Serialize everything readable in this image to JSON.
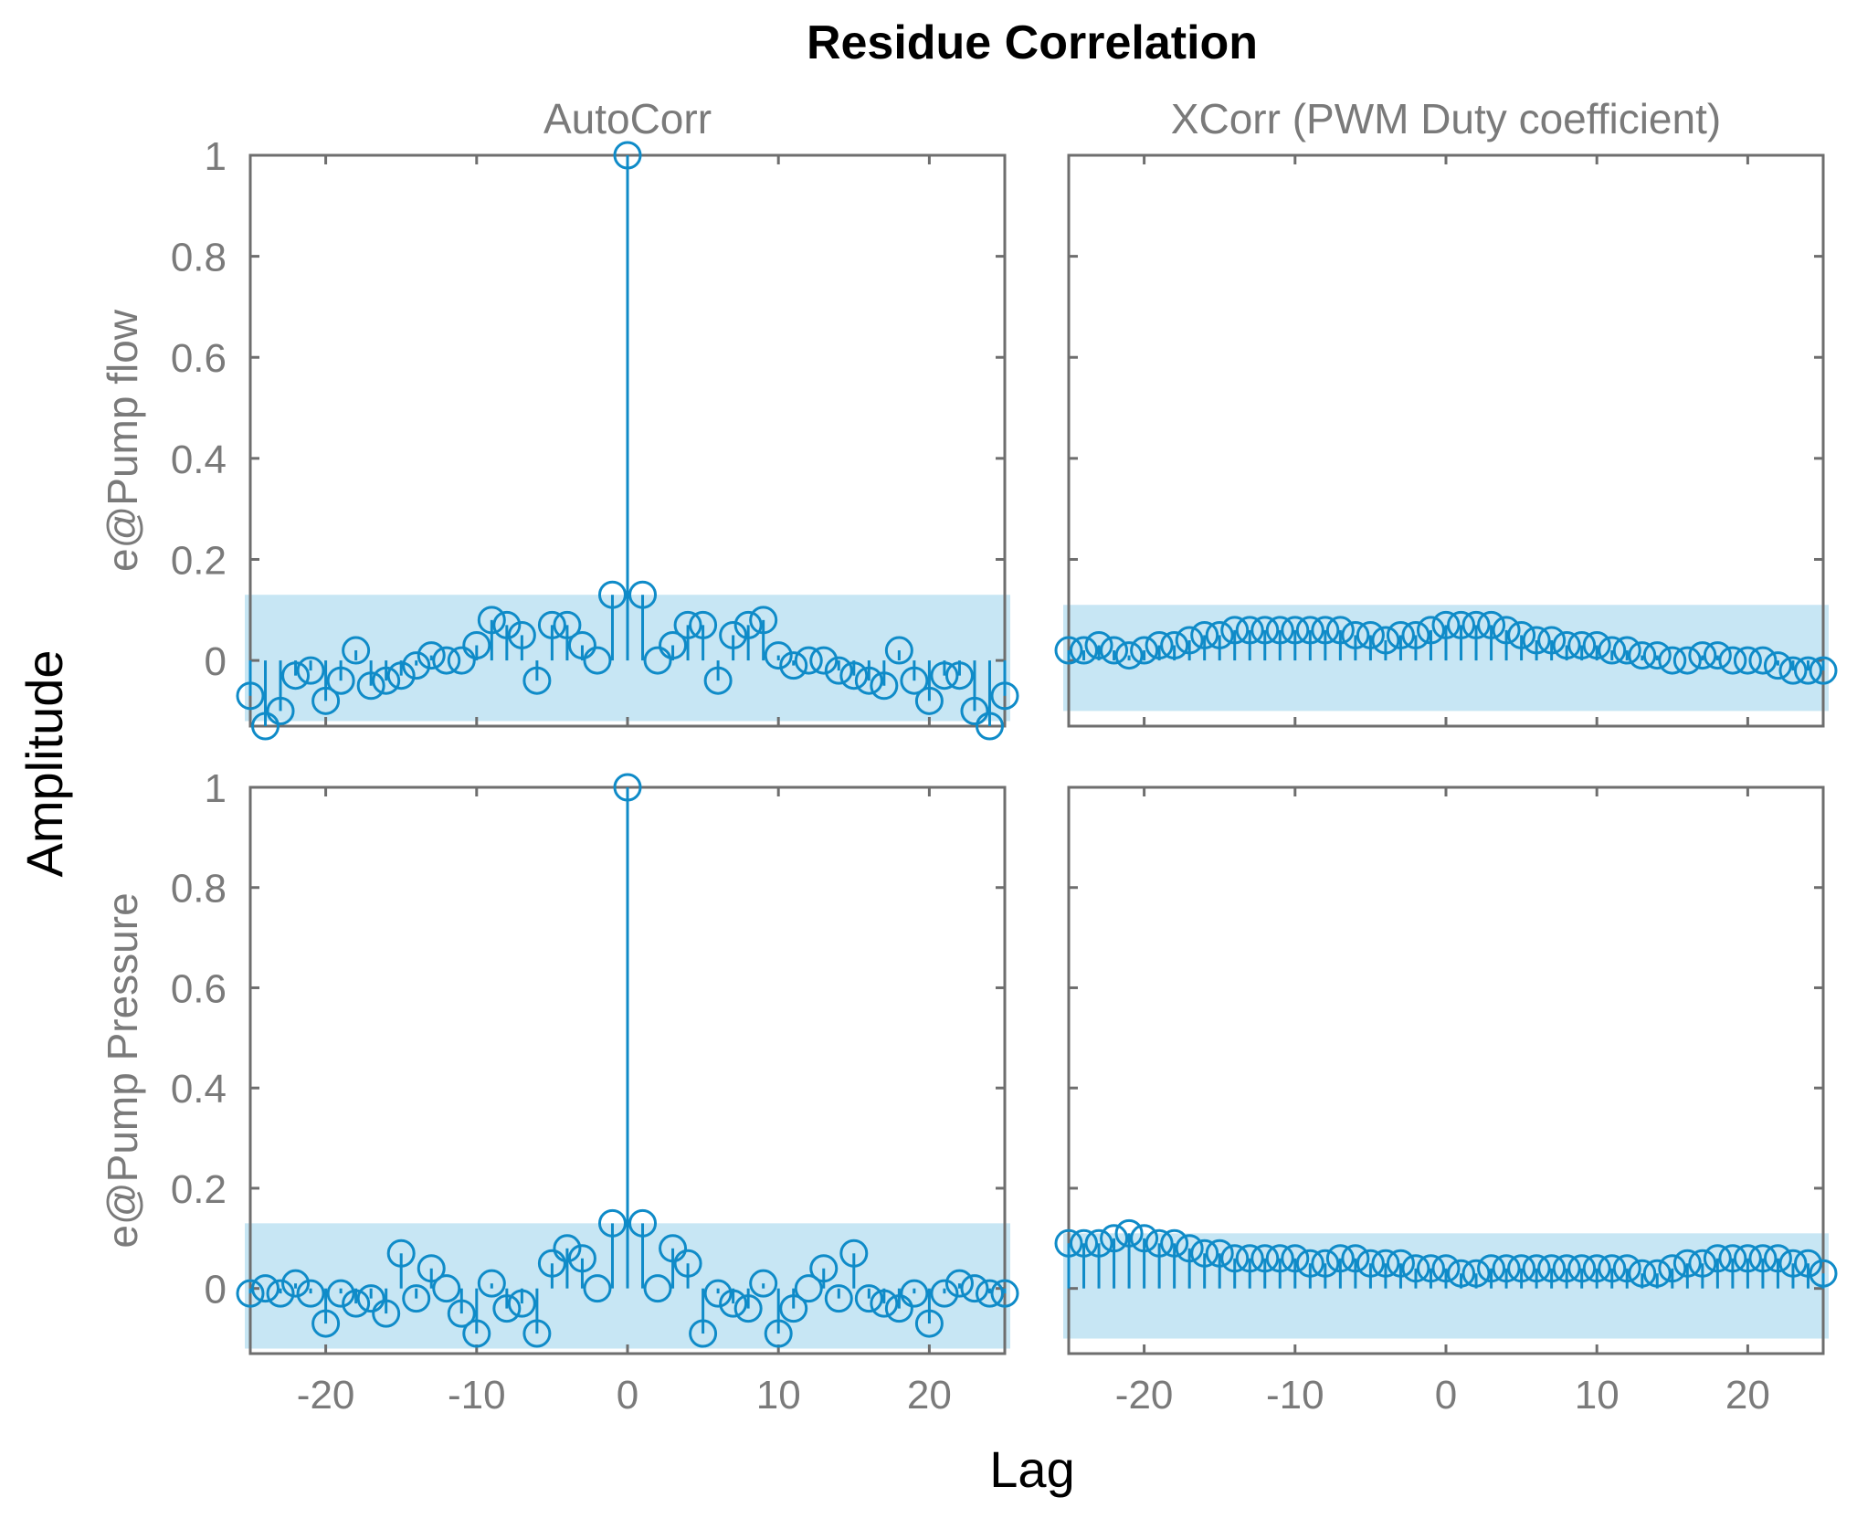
{
  "figure": {
    "title": "Residue Correlation",
    "x_label": "Lag",
    "y_label": "Amplitude"
  },
  "chart_data": [
    {
      "type": "stem",
      "row": 0,
      "col": 0,
      "column_title": "AutoCorr",
      "ylabel": "e@Pump flow",
      "xlim": [
        -25,
        25
      ],
      "ylim": [
        -0.13,
        1.0
      ],
      "xticks": [
        -20,
        -10,
        0,
        10,
        20
      ],
      "yticks": [
        0,
        0.2,
        0.4,
        0.6,
        0.8,
        1
      ],
      "ytick_labels": [
        "0",
        "0.2",
        "0.4",
        "0.6",
        "0.8",
        "1"
      ],
      "confidence_band": [
        -0.12,
        0.13
      ],
      "x": [
        -25,
        -24,
        -23,
        -22,
        -21,
        -20,
        -19,
        -18,
        -17,
        -16,
        -15,
        -14,
        -13,
        -12,
        -11,
        -10,
        -9,
        -8,
        -7,
        -6,
        -5,
        -4,
        -3,
        -2,
        -1,
        0,
        1,
        2,
        3,
        4,
        5,
        6,
        7,
        8,
        9,
        10,
        11,
        12,
        13,
        14,
        15,
        16,
        17,
        18,
        19,
        20,
        21,
        22,
        23,
        24,
        25
      ],
      "values": [
        -0.07,
        -0.13,
        -0.1,
        -0.03,
        -0.02,
        -0.08,
        -0.04,
        0.02,
        -0.05,
        -0.04,
        -0.03,
        -0.01,
        0.01,
        0.0,
        0.0,
        0.03,
        0.08,
        0.07,
        0.05,
        -0.04,
        0.07,
        0.07,
        0.03,
        0.0,
        0.13,
        1.0,
        0.13,
        0.0,
        0.03,
        0.07,
        0.07,
        -0.04,
        0.05,
        0.07,
        0.08,
        0.01,
        -0.01,
        0.0,
        0.0,
        -0.02,
        -0.03,
        -0.04,
        -0.05,
        0.02,
        -0.04,
        -0.08,
        -0.03,
        -0.03,
        -0.1,
        -0.13,
        -0.07
      ]
    },
    {
      "type": "stem",
      "row": 0,
      "col": 1,
      "column_title": "XCorr (PWM Duty coefficient)",
      "xlim": [
        -25,
        25
      ],
      "ylim": [
        -0.13,
        1.0
      ],
      "xticks": [
        -20,
        -10,
        0,
        10,
        20
      ],
      "confidence_band": [
        -0.1,
        0.11
      ],
      "x": [
        -25,
        -24,
        -23,
        -22,
        -21,
        -20,
        -19,
        -18,
        -17,
        -16,
        -15,
        -14,
        -13,
        -12,
        -11,
        -10,
        -9,
        -8,
        -7,
        -6,
        -5,
        -4,
        -3,
        -2,
        -1,
        0,
        1,
        2,
        3,
        4,
        5,
        6,
        7,
        8,
        9,
        10,
        11,
        12,
        13,
        14,
        15,
        16,
        17,
        18,
        19,
        20,
        21,
        22,
        23,
        24,
        25
      ],
      "values": [
        0.02,
        0.02,
        0.03,
        0.02,
        0.01,
        0.02,
        0.03,
        0.03,
        0.04,
        0.05,
        0.05,
        0.06,
        0.06,
        0.06,
        0.06,
        0.06,
        0.06,
        0.06,
        0.06,
        0.05,
        0.05,
        0.04,
        0.05,
        0.05,
        0.06,
        0.07,
        0.07,
        0.07,
        0.07,
        0.06,
        0.05,
        0.04,
        0.04,
        0.03,
        0.03,
        0.03,
        0.02,
        0.02,
        0.01,
        0.01,
        0.0,
        0.0,
        0.01,
        0.01,
        0.0,
        0.0,
        0.0,
        -0.01,
        -0.02,
        -0.02,
        -0.02
      ]
    },
    {
      "type": "stem",
      "row": 1,
      "col": 0,
      "column_title": "AutoCorr",
      "ylabel": "e@Pump Pressure",
      "xlim": [
        -25,
        25
      ],
      "ylim": [
        -0.13,
        1.0
      ],
      "xticks": [
        -20,
        -10,
        0,
        10,
        20
      ],
      "xtick_labels": [
        "-20",
        "-10",
        "0",
        "10",
        "20"
      ],
      "yticks": [
        0,
        0.2,
        0.4,
        0.6,
        0.8,
        1
      ],
      "ytick_labels": [
        "0",
        "0.2",
        "0.4",
        "0.6",
        "0.8",
        "1"
      ],
      "confidence_band": [
        -0.12,
        0.13
      ],
      "x": [
        -25,
        -24,
        -23,
        -22,
        -21,
        -20,
        -19,
        -18,
        -17,
        -16,
        -15,
        -14,
        -13,
        -12,
        -11,
        -10,
        -9,
        -8,
        -7,
        -6,
        -5,
        -4,
        -3,
        -2,
        -1,
        0,
        1,
        2,
        3,
        4,
        5,
        6,
        7,
        8,
        9,
        10,
        11,
        12,
        13,
        14,
        15,
        16,
        17,
        18,
        19,
        20,
        21,
        22,
        23,
        24,
        25
      ],
      "values": [
        -0.01,
        0.0,
        -0.01,
        0.01,
        -0.01,
        -0.07,
        -0.01,
        -0.03,
        -0.02,
        -0.05,
        0.07,
        -0.02,
        0.04,
        0.0,
        -0.05,
        -0.09,
        0.01,
        -0.04,
        -0.03,
        -0.09,
        0.05,
        0.08,
        0.06,
        0.0,
        0.13,
        1.0,
        0.13,
        0.0,
        0.08,
        0.05,
        -0.09,
        -0.01,
        -0.03,
        -0.04,
        0.01,
        -0.09,
        -0.04,
        0.0,
        0.04,
        -0.02,
        0.07,
        -0.02,
        -0.03,
        -0.04,
        -0.01,
        -0.07,
        -0.01,
        0.01,
        0.0,
        -0.01,
        -0.01
      ]
    },
    {
      "type": "stem",
      "row": 1,
      "col": 1,
      "column_title": "XCorr (PWM Duty coefficient)",
      "xlim": [
        -25,
        25
      ],
      "ylim": [
        -0.13,
        1.0
      ],
      "xticks": [
        -20,
        -10,
        0,
        10,
        20
      ],
      "xtick_labels": [
        "-20",
        "-10",
        "0",
        "10",
        "20"
      ],
      "confidence_band": [
        -0.1,
        0.11
      ],
      "x": [
        -25,
        -24,
        -23,
        -22,
        -21,
        -20,
        -19,
        -18,
        -17,
        -16,
        -15,
        -14,
        -13,
        -12,
        -11,
        -10,
        -9,
        -8,
        -7,
        -6,
        -5,
        -4,
        -3,
        -2,
        -1,
        0,
        1,
        2,
        3,
        4,
        5,
        6,
        7,
        8,
        9,
        10,
        11,
        12,
        13,
        14,
        15,
        16,
        17,
        18,
        19,
        20,
        21,
        22,
        23,
        24,
        25
      ],
      "values": [
        0.09,
        0.09,
        0.09,
        0.1,
        0.11,
        0.1,
        0.09,
        0.09,
        0.08,
        0.07,
        0.07,
        0.06,
        0.06,
        0.06,
        0.06,
        0.06,
        0.05,
        0.05,
        0.06,
        0.06,
        0.05,
        0.05,
        0.05,
        0.04,
        0.04,
        0.04,
        0.03,
        0.03,
        0.04,
        0.04,
        0.04,
        0.04,
        0.04,
        0.04,
        0.04,
        0.04,
        0.04,
        0.04,
        0.03,
        0.03,
        0.04,
        0.05,
        0.05,
        0.06,
        0.06,
        0.06,
        0.06,
        0.06,
        0.05,
        0.05,
        0.03
      ]
    }
  ]
}
